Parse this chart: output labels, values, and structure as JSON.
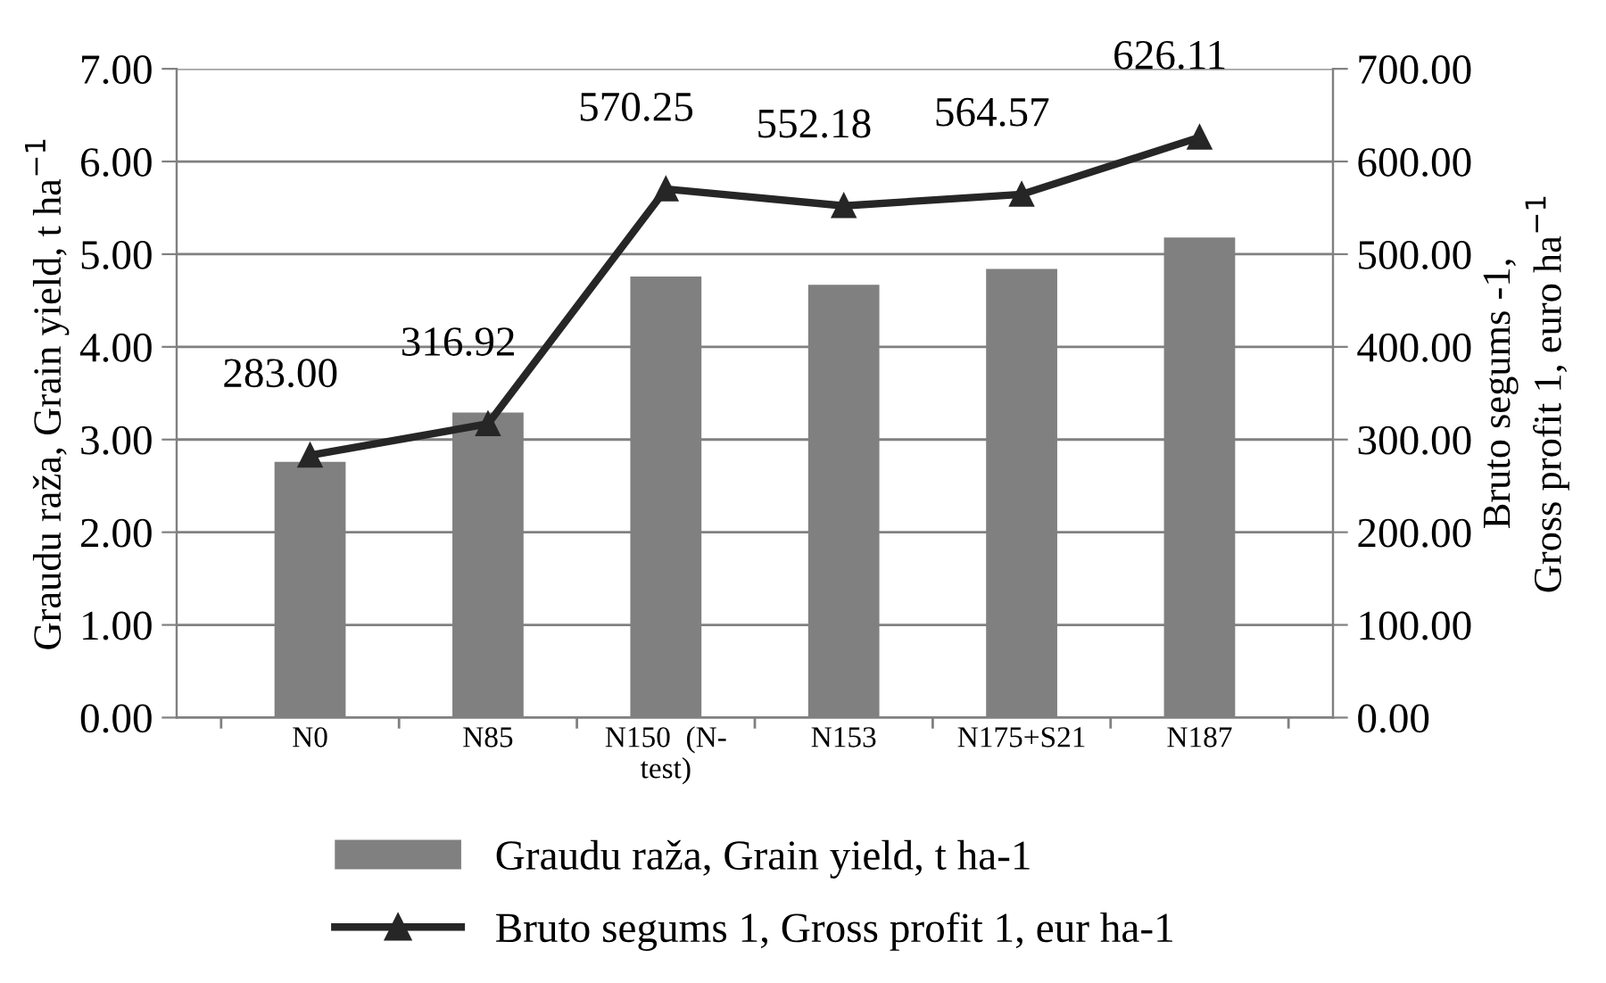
{
  "chart_data": {
    "type": "bar",
    "categories": [
      "N0",
      "N85",
      "N150  (N-\ntest)",
      "N153",
      "N175+S21",
      "N187"
    ],
    "ylabel": "Graudu raža, Grain yield, t ha$^{−1}$",
    "y2label": "Bruto segums -1,\nGross profit 1, euro ha$^{−1}$",
    "series": [
      {
        "name": "Graudu raža, Grain yield, t ha-1",
        "color": "#808080",
        "values": [
          2.76,
          3.29,
          4.76,
          4.67,
          4.84,
          5.18
        ]
      },
      {
        "name": "Bruto segums 1, Gross profit 1, eur ha-1",
        "type": "line",
        "axis": "y2",
        "color": "#262626",
        "marker": "triangle",
        "values": [
          283.0,
          316.92,
          570.25,
          552.18,
          564.57,
          626.11
        ],
        "value_labels": [
          "283.00",
          "316.92",
          "570.25",
          "552.18",
          "564.57",
          "626.11"
        ]
      }
    ],
    "ylim": [
      0,
      7
    ],
    "yticks": [
      {
        "value": 0,
        "label": "0.00"
      },
      {
        "value": 1,
        "label": "1.00"
      },
      {
        "value": 2,
        "label": "2.00"
      },
      {
        "value": 3,
        "label": "3.00"
      },
      {
        "value": 4,
        "label": "4.00"
      },
      {
        "value": 5,
        "label": "5.00"
      },
      {
        "value": 6,
        "label": "6.00"
      },
      {
        "value": 7,
        "label": "7.00"
      }
    ],
    "y2lim": [
      0,
      700
    ],
    "y2ticks": [
      {
        "value": 0,
        "label": "0.00"
      },
      {
        "value": 100,
        "label": "100.00"
      },
      {
        "value": 200,
        "label": "200.00"
      },
      {
        "value": 300,
        "label": "300.00"
      },
      {
        "value": 400,
        "label": "400.00"
      },
      {
        "value": 500,
        "label": "500.00"
      },
      {
        "value": 600,
        "label": "600.00"
      },
      {
        "value": 700,
        "label": "700.00"
      }
    ],
    "grid": "y",
    "legend": "bottom"
  }
}
